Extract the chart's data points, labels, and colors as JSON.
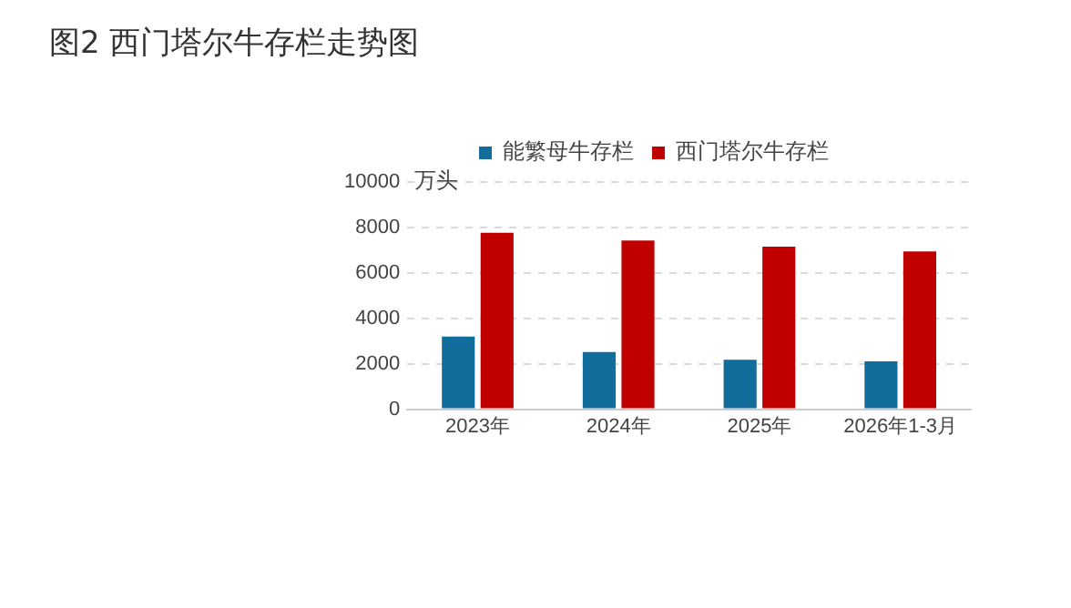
{
  "chart_data": {
    "type": "bar",
    "title": "图2 西门塔尔牛存栏走势图",
    "ylabel": "万头",
    "categories": [
      "2023年",
      "2024年",
      "2025年",
      "2026年1-3月"
    ],
    "series": [
      {
        "name": "能繁母牛存栏",
        "color": "#136d9c",
        "values": [
          3200,
          2520,
          2180,
          2110
        ]
      },
      {
        "name": "西门塔尔牛存栏",
        "color": "#c00000",
        "values": [
          7770,
          7430,
          7160,
          6950
        ]
      }
    ],
    "ylim": [
      0,
      10000
    ],
    "yticks": [
      0,
      2000,
      4000,
      6000,
      8000,
      10000
    ],
    "grid": "y",
    "legend": "top"
  }
}
